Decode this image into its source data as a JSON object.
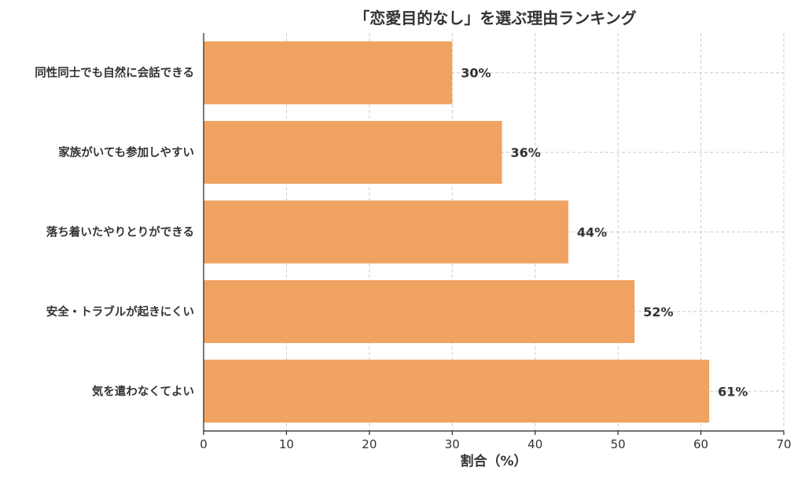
{
  "chart_data": {
    "type": "bar",
    "orientation": "horizontal",
    "title": "「恋愛目的なし」を選ぶ理由ランキング",
    "xlabel": "割合（%）",
    "ylabel": "",
    "categories": [
      "同性同士でも自然に会話できる",
      "家族がいても参加しやすい",
      "落ち着いたやりとりができる",
      "安全・トラブルが起きにくい",
      "気を遣わなくてよい"
    ],
    "values": [
      30,
      36,
      44,
      52,
      61
    ],
    "data_labels": [
      "30%",
      "36%",
      "44%",
      "52%",
      "61%"
    ],
    "xlim": [
      0,
      70
    ],
    "xticks": [
      0,
      10,
      20,
      30,
      40,
      50,
      60,
      70
    ],
    "xtick_labels": [
      "0",
      "10",
      "20",
      "30",
      "40",
      "50",
      "60",
      "70"
    ],
    "grid": true,
    "bar_color": "#f0a262",
    "legend": "none"
  }
}
